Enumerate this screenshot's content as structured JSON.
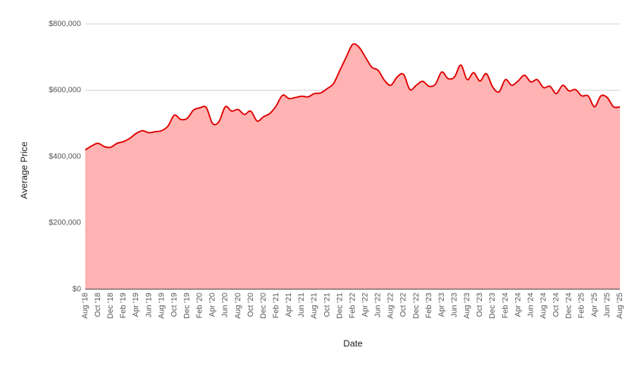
{
  "chart_data": {
    "type": "area",
    "x_label": "Date",
    "y_label": "Average Price",
    "color": "#e00000",
    "fill": "#ffb3b3",
    "categories": [
      "Aug '18",
      null,
      "Oct '18",
      null,
      "Dec '18",
      null,
      "Feb '19",
      null,
      "Apr '19",
      null,
      "Jun '19",
      null,
      "Aug '19",
      null,
      "Oct '19",
      null,
      "Dec '19",
      null,
      "Feb '20",
      null,
      "Apr '20",
      null,
      "Jun '20",
      null,
      "Aug '20",
      null,
      "Oct '20",
      null,
      "Dec '20",
      null,
      "Feb '21",
      null,
      "Apr '21",
      null,
      "Jun '21",
      null,
      "Aug '21",
      null,
      "Oct '21",
      null,
      "Dec '21",
      null,
      "Feb '22",
      null,
      "Apr '22",
      null,
      "Jun '22",
      null,
      "Aug '22",
      null,
      "Oct '22",
      null,
      "Dec '22",
      null,
      "Feb '23",
      null,
      "Apr '23",
      null,
      "Jun '23",
      null,
      "Aug '23",
      null,
      "Oct '23",
      null,
      "Dec '23",
      null,
      "Feb '24",
      null,
      "Apr '24",
      null,
      "Jun '24",
      null,
      "Aug '24",
      null,
      "Oct '24",
      null,
      "Dec '24",
      null,
      "Feb '25",
      null,
      "Apr '25",
      null,
      "Jun '25",
      null,
      "Aug '25"
    ],
    "values": [
      420000,
      432000,
      440000,
      430000,
      428000,
      440000,
      445000,
      455000,
      470000,
      478000,
      472000,
      475000,
      478000,
      492000,
      525000,
      512000,
      515000,
      540000,
      547000,
      548000,
      500000,
      505000,
      550000,
      537000,
      542000,
      527000,
      537000,
      507000,
      520000,
      530000,
      553000,
      585000,
      575000,
      578000,
      582000,
      580000,
      590000,
      592000,
      605000,
      620000,
      660000,
      700000,
      738000,
      730000,
      700000,
      670000,
      660000,
      630000,
      615000,
      640000,
      648000,
      602000,
      615000,
      627000,
      612000,
      618000,
      655000,
      635000,
      640000,
      676000,
      632000,
      653000,
      628000,
      650000,
      610000,
      595000,
      632000,
      615000,
      628000,
      645000,
      625000,
      632000,
      608000,
      612000,
      590000,
      615000,
      598000,
      602000,
      583000,
      583000,
      550000,
      583000,
      578000,
      550000,
      550000
    ],
    "ylim": [
      0,
      800000
    ],
    "yticks": [
      {
        "value": 0,
        "label": "$0"
      },
      {
        "value": 200000,
        "label": "$200,000"
      },
      {
        "value": 400000,
        "label": "$400,000"
      },
      {
        "value": 600000,
        "label": "$600,000"
      },
      {
        "value": 800000,
        "label": "$800,000"
      }
    ],
    "grid": true
  }
}
